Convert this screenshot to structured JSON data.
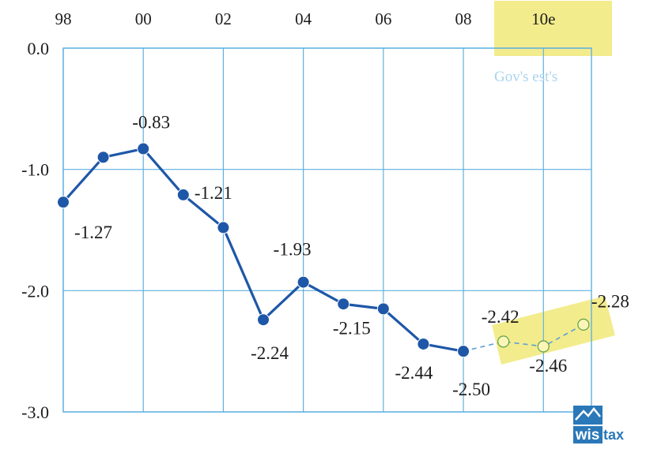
{
  "chart_data": {
    "type": "line",
    "title": "",
    "xlabel": "",
    "ylabel": "",
    "x_ticks": [
      "98",
      "00",
      "02",
      "04",
      "06",
      "08",
      "10e"
    ],
    "y_ticks": [
      "0.0",
      "-1.0",
      "-2.0",
      "-3.0"
    ],
    "xlim": [
      1998,
      2011.2
    ],
    "ylim": [
      -3.0,
      0.0
    ],
    "grid": true,
    "series": [
      {
        "style": "actual",
        "color": "#1e57a8",
        "points": [
          {
            "x": 1998,
            "y": -1.27,
            "label": "-1.27"
          },
          {
            "x": 1999,
            "y": -0.9,
            "label": ""
          },
          {
            "x": 2000,
            "y": -0.83,
            "label": "-0.83"
          },
          {
            "x": 2001,
            "y": -1.21,
            "label": "-1.21"
          },
          {
            "x": 2002,
            "y": -1.48,
            "label": ""
          },
          {
            "x": 2003,
            "y": -2.24,
            "label": "-2.24"
          },
          {
            "x": 2004,
            "y": -1.93,
            "label": "-1.93"
          },
          {
            "x": 2005,
            "y": -2.11,
            "label": ""
          },
          {
            "x": 2006,
            "y": -2.15,
            "label": "-2.15"
          },
          {
            "x": 2007,
            "y": -2.44,
            "label": "-2.44"
          },
          {
            "x": 2008,
            "y": -2.5,
            "label": "-2.50"
          }
        ]
      },
      {
        "style": "estimate",
        "color": "#5b9fd6",
        "points": [
          {
            "x": 2009,
            "y": -2.42,
            "label": "-2.42"
          },
          {
            "x": 2010,
            "y": -2.46,
            "label": "-2.46"
          },
          {
            "x": 2011,
            "y": -2.28,
            "label": "-2.28"
          }
        ]
      }
    ],
    "annotation": "Gov's est's",
    "highlight_color": "#f5f08a",
    "grid_color": "#5fb0e0"
  },
  "logo": {
    "part1": "wis",
    "part2": "tax"
  }
}
